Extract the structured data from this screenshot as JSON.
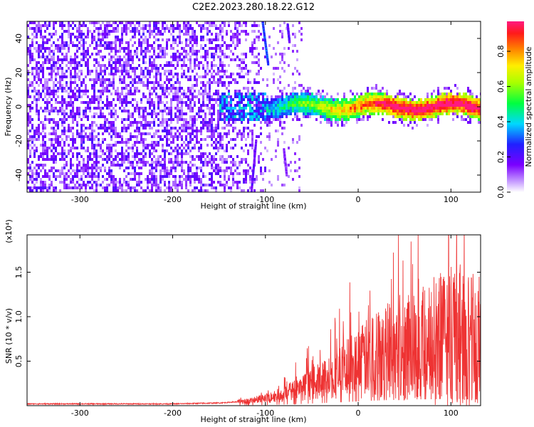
{
  "title": "C2E2.2023.280.18.22.G12",
  "colorbar": {
    "label": "Normalized spectral amplitude",
    "ticks": [
      "0.0",
      "0.2",
      "0.4",
      "0.6",
      "0.8"
    ],
    "range": [
      0,
      0.97
    ]
  },
  "chart_data": [
    {
      "type": "heatmap",
      "xlabel": "Height of straight line (km)",
      "ylabel": "Frequency (Hz)",
      "xlim": [
        -357,
        132
      ],
      "ylim": [
        -50,
        50
      ],
      "xticks": [
        -300,
        -200,
        -100,
        0,
        100
      ],
      "xtick_labels": [
        "-300",
        "-200",
        "-100",
        "0",
        "100"
      ],
      "yticks": [
        -40,
        -20,
        0,
        20,
        40
      ],
      "ytick_labels": [
        "-40",
        "-20",
        "0",
        "20",
        "40"
      ],
      "colormap": "rainbow (violet-blue-cyan-green-yellow-red-magenta)",
      "regions": [
        {
          "name": "broadband noise",
          "x": [
            -357,
            -150
          ],
          "y": [
            -50,
            50
          ],
          "amplitude": 0.1
        },
        {
          "name": "transition",
          "x": [
            -150,
            -100
          ],
          "y": [
            -50,
            50
          ],
          "amplitude": 0.15
        },
        {
          "name": "narrowband signal",
          "x": [
            -100,
            132
          ],
          "center_y": 0,
          "width_y": 12,
          "peak_amplitude": 0.95
        }
      ]
    },
    {
      "type": "line",
      "xlabel": "Height of straight line (km)",
      "ylabel": "SNR (10 * v/v)",
      "y_scale_note": "(x10⁴)",
      "xlim": [
        -357,
        132
      ],
      "ylim": [
        0,
        1.92
      ],
      "xticks": [
        -300,
        -200,
        -100,
        0,
        100
      ],
      "xtick_labels": [
        "-300",
        "-200",
        "-100",
        "0",
        "100"
      ],
      "yticks": [
        0.5,
        1.0,
        1.5
      ],
      "ytick_labels": [
        "0.5",
        "1.0",
        "1.5"
      ],
      "color": "#ee3333",
      "trend": {
        "x": [
          -357,
          -300,
          -200,
          -150,
          -120,
          -100,
          -80,
          -60,
          -40,
          -20,
          0,
          20,
          40,
          60,
          80,
          100,
          110,
          120,
          132
        ],
        "y": [
          0.02,
          0.02,
          0.02,
          0.03,
          0.05,
          0.08,
          0.13,
          0.2,
          0.28,
          0.37,
          0.48,
          0.58,
          0.65,
          0.7,
          0.72,
          0.78,
          0.75,
          0.7,
          0.72
        ]
      }
    }
  ]
}
